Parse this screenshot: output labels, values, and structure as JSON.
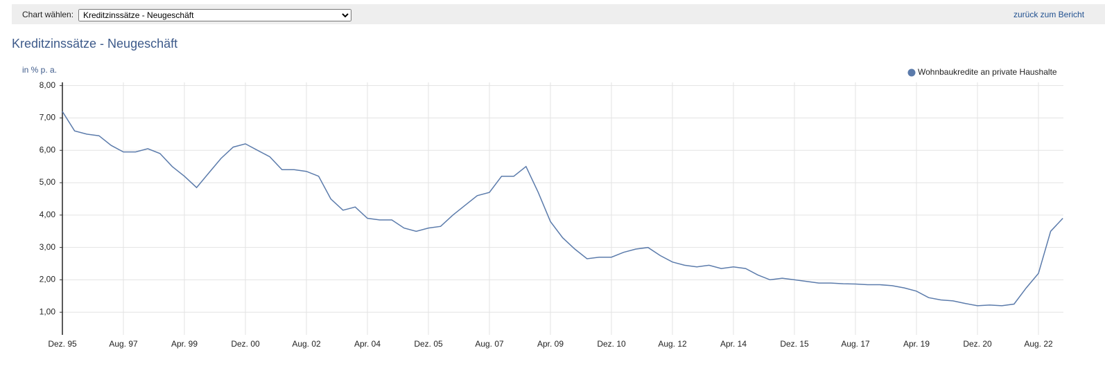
{
  "toolbar": {
    "label": "Chart wählen:",
    "select": "Kreditzinssätze - Neugeschäft",
    "link": "zurück zum Bericht"
  },
  "chart_data": {
    "type": "line",
    "title": "Kreditzinssätze - Neugeschäft",
    "y_label": "in % p. a.",
    "categories": [
      "Dez. 95",
      null,
      null,
      null,
      null,
      "Aug. 97",
      null,
      null,
      null,
      null,
      "Apr. 99",
      null,
      null,
      null,
      null,
      "Dez. 00",
      null,
      null,
      null,
      null,
      "Aug. 02",
      null,
      null,
      null,
      null,
      "Apr. 04",
      null,
      null,
      null,
      null,
      "Dez. 05",
      null,
      null,
      null,
      null,
      "Aug. 07",
      null,
      null,
      null,
      null,
      "Apr. 09",
      null,
      null,
      null,
      null,
      "Dez. 10",
      null,
      null,
      null,
      null,
      "Aug. 12",
      null,
      null,
      null,
      null,
      "Apr. 14",
      null,
      null,
      null,
      null,
      "Dez. 15",
      null,
      null,
      null,
      null,
      "Aug. 17",
      null,
      null,
      null,
      null,
      "Apr. 19",
      null,
      null,
      null,
      null,
      "Dez. 20",
      null,
      null,
      null,
      null,
      "Aug. 22",
      null,
      null
    ],
    "series": [
      {
        "name": "Wohnbaukredite an private Haushalte",
        "color": "#5b7bab",
        "values": [
          7.2,
          6.6,
          6.5,
          6.45,
          6.15,
          5.95,
          5.95,
          6.05,
          5.9,
          5.5,
          5.2,
          4.85,
          5.3,
          5.75,
          6.1,
          6.2,
          6.0,
          5.8,
          5.4,
          5.4,
          5.35,
          5.2,
          4.5,
          4.15,
          4.25,
          3.9,
          3.85,
          3.85,
          3.6,
          3.5,
          3.6,
          3.65,
          4.0,
          4.3,
          4.6,
          4.7,
          5.2,
          5.2,
          5.5,
          4.7,
          3.8,
          3.3,
          2.95,
          2.65,
          2.7,
          2.7,
          2.85,
          2.95,
          3.0,
          2.75,
          2.55,
          2.45,
          2.4,
          2.45,
          2.35,
          2.4,
          2.35,
          2.15,
          2.0,
          2.05,
          2.0,
          1.95,
          1.9,
          1.9,
          1.88,
          1.87,
          1.85,
          1.85,
          1.82,
          1.75,
          1.65,
          1.45,
          1.38,
          1.35,
          1.27,
          1.2,
          1.22,
          1.2,
          1.25,
          1.75,
          2.2,
          3.5,
          3.9
        ]
      }
    ],
    "ylim": [
      0.3,
      8.1
    ],
    "yticks": [
      {
        "value": 1,
        "label": "1,00"
      },
      {
        "value": 2,
        "label": "2,00"
      },
      {
        "value": 3,
        "label": "3,00"
      },
      {
        "value": 4,
        "label": "4,00"
      },
      {
        "value": 5,
        "label": "5,00"
      },
      {
        "value": 6,
        "label": "6,00"
      },
      {
        "value": 7,
        "label": "7,00"
      },
      {
        "value": 8,
        "label": "8,00"
      }
    ],
    "grid": true,
    "legend": "top-right"
  }
}
